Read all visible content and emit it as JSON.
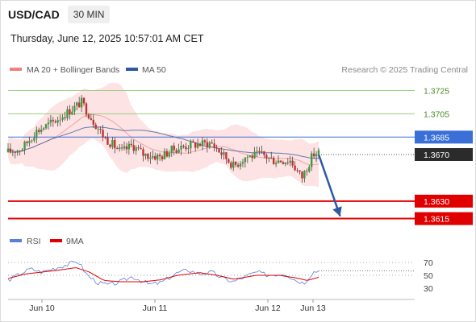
{
  "header": {
    "pair": "USD/CAD",
    "timeframe": "30 MIN",
    "datetime": "Thursday, June 12, 2025 10:57:01 AM CET"
  },
  "legend": {
    "bollinger_label": "MA 20 + Bollinger Bands",
    "ma50_label": "MA 50",
    "credit": "Research © 2025 Trading Central",
    "colors": {
      "bollinger": "#f08080",
      "ma50": "#2c5aa0"
    }
  },
  "rsi_legend": {
    "rsi_label": "RSI",
    "ma_label": "9MA",
    "colors": {
      "rsi": "#5b7fd6",
      "ma": "#e00000"
    }
  },
  "chart_data": [
    {
      "type": "candlestick",
      "title": "",
      "ylim": [
        1.3605,
        1.3735
      ],
      "x_range": [
        0,
        3.6
      ],
      "x_ticks": [
        {
          "x": 0.3,
          "label": "Jun 10"
        },
        {
          "x": 1.3,
          "label": "Jun 11"
        },
        {
          "x": 2.3,
          "label": "Jun 12"
        },
        {
          "x": 2.7,
          "label": "Jun 13"
        }
      ],
      "levels": [
        {
          "value": 1.3725,
          "label": "1.3725",
          "kind": "resistance",
          "color": "#9acd7e",
          "text_color": "#4a8a2a"
        },
        {
          "value": 1.3705,
          "label": "1.3705",
          "kind": "resistance",
          "color": "#9acd7e",
          "text_color": "#4a8a2a"
        },
        {
          "value": 1.3685,
          "label": "1.3685",
          "kind": "pivot",
          "color": "#3a6fd8",
          "text_color": "#ffffff"
        },
        {
          "value": 1.363,
          "label": "1.3630",
          "kind": "support",
          "color": "#e00000",
          "text_color": "#ffffff"
        },
        {
          "value": 1.3615,
          "label": "1.3615",
          "kind": "support",
          "color": "#e00000",
          "text_color": "#ffffff"
        }
      ],
      "last_price": {
        "value": 1.367,
        "label": "1.3670"
      },
      "projection": {
        "from": [
          2.75,
          1.367
        ],
        "to": [
          2.94,
          1.3617
        ],
        "color": "#2c5aa0"
      },
      "series": [
        {
          "name": "MA 20 + Bollinger Bands",
          "kind": "bollinger"
        },
        {
          "name": "MA 50",
          "kind": "ma"
        }
      ],
      "keyframes": [
        [
          0.0,
          1.3672
        ],
        [
          0.12,
          1.3675
        ],
        [
          0.25,
          1.369
        ],
        [
          0.4,
          1.3698
        ],
        [
          0.55,
          1.3708
        ],
        [
          0.65,
          1.3715
        ],
        [
          0.72,
          1.3704
        ],
        [
          0.85,
          1.3685
        ],
        [
          1.0,
          1.3672
        ],
        [
          1.1,
          1.3678
        ],
        [
          1.2,
          1.367
        ],
        [
          1.35,
          1.3668
        ],
        [
          1.45,
          1.3674
        ],
        [
          1.6,
          1.3678
        ],
        [
          1.8,
          1.368
        ],
        [
          1.88,
          1.3672
        ],
        [
          2.0,
          1.366
        ],
        [
          2.1,
          1.3668
        ],
        [
          2.25,
          1.367
        ],
        [
          2.35,
          1.3665
        ],
        [
          2.5,
          1.3665
        ],
        [
          2.6,
          1.365
        ],
        [
          2.7,
          1.367
        ],
        [
          2.75,
          1.3672
        ]
      ],
      "candle_count": 132
    },
    {
      "type": "line",
      "title": "RSI",
      "ylim": [
        25,
        80
      ],
      "y_ticks": [
        30,
        50,
        70
      ],
      "last_value": 57,
      "keyframes_rsi": [
        [
          0.0,
          42
        ],
        [
          0.1,
          52
        ],
        [
          0.2,
          60
        ],
        [
          0.3,
          55
        ],
        [
          0.45,
          63
        ],
        [
          0.55,
          68
        ],
        [
          0.62,
          72
        ],
        [
          0.7,
          50
        ],
        [
          0.8,
          38
        ],
        [
          0.9,
          35
        ],
        [
          1.0,
          40
        ],
        [
          1.1,
          48
        ],
        [
          1.25,
          36
        ],
        [
          1.35,
          38
        ],
        [
          1.5,
          54
        ],
        [
          1.6,
          58
        ],
        [
          1.7,
          52
        ],
        [
          1.8,
          55
        ],
        [
          1.9,
          45
        ],
        [
          2.0,
          40
        ],
        [
          2.1,
          48
        ],
        [
          2.2,
          55
        ],
        [
          2.3,
          50
        ],
        [
          2.45,
          53
        ],
        [
          2.55,
          42
        ],
        [
          2.62,
          38
        ],
        [
          2.7,
          55
        ],
        [
          2.75,
          57
        ]
      ],
      "keyframes_ma": [
        [
          0.0,
          45
        ],
        [
          0.15,
          52
        ],
        [
          0.3,
          55
        ],
        [
          0.45,
          58
        ],
        [
          0.6,
          62
        ],
        [
          0.72,
          55
        ],
        [
          0.85,
          42
        ],
        [
          1.0,
          40
        ],
        [
          1.2,
          40
        ],
        [
          1.35,
          43
        ],
        [
          1.5,
          50
        ],
        [
          1.7,
          54
        ],
        [
          1.85,
          50
        ],
        [
          2.0,
          44
        ],
        [
          2.2,
          50
        ],
        [
          2.4,
          50
        ],
        [
          2.55,
          46
        ],
        [
          2.65,
          42
        ],
        [
          2.75,
          47
        ]
      ]
    }
  ]
}
